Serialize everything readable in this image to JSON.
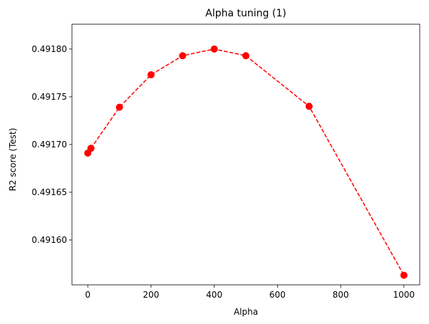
{
  "chart_data": {
    "type": "line",
    "title": "Alpha tuning (1)",
    "xlabel": "Alpha",
    "ylabel": "R2 score (Test)",
    "grid": false,
    "line_style": "dashed",
    "marker": "circle",
    "color": "#ff0000",
    "xlim": [
      -50,
      1050
    ],
    "ylim": [
      0.491553,
      0.491826
    ],
    "xticks": [
      0,
      200,
      400,
      600,
      800,
      1000
    ],
    "yticks": [
      0.4916,
      0.49165,
      0.4917,
      0.49175,
      0.4918
    ],
    "ytick_labels": [
      "0.49160",
      "0.49165",
      "0.49170",
      "0.49175",
      "0.49180"
    ],
    "x": [
      0,
      10,
      100,
      200,
      300,
      400,
      500,
      700,
      1000
    ],
    "y": [
      0.491691,
      0.491696,
      0.491739,
      0.491773,
      0.491793,
      0.4918,
      0.491793,
      0.49174,
      0.491563
    ]
  }
}
